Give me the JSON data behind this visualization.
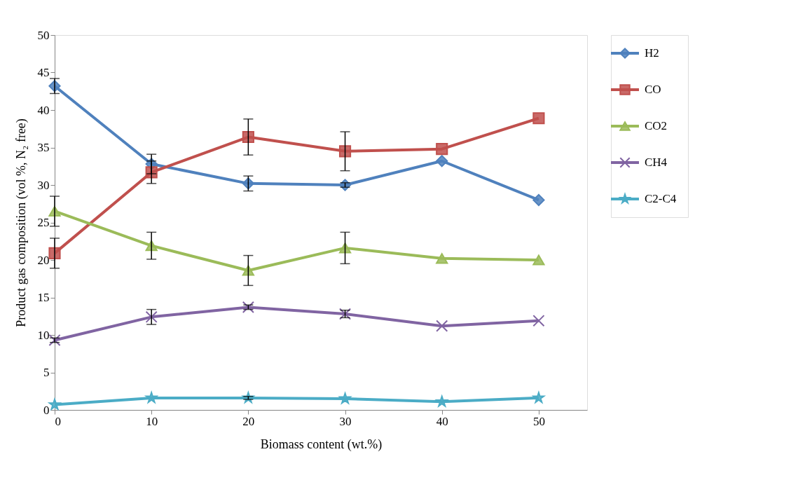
{
  "chart_data": {
    "type": "line",
    "xlabel": "Biomass content (wt.%)",
    "ylabel": "Product gas composition (vol %, N₂ free)",
    "x": [
      0,
      10,
      20,
      30,
      40,
      50
    ],
    "xlim": [
      0,
      55
    ],
    "xticks": [
      0,
      10,
      20,
      30,
      40,
      50
    ],
    "ylim": [
      0,
      50
    ],
    "yticks": [
      0,
      5,
      10,
      15,
      20,
      25,
      30,
      35,
      40,
      45,
      50
    ],
    "grid": false,
    "legend": "right",
    "line_style": "solid",
    "series": [
      {
        "name": "H2",
        "color": "#4f81bd",
        "marker": "diamond",
        "values": [
          43.2,
          32.8,
          30.2,
          30.0,
          33.2,
          28.0
        ],
        "errors": [
          1.0,
          1.3,
          1.0,
          0.3,
          null,
          null
        ]
      },
      {
        "name": "CO",
        "color": "#c0504d",
        "marker": "square",
        "values": [
          20.9,
          31.7,
          36.4,
          34.5,
          34.8,
          38.9
        ],
        "errors": [
          2.0,
          1.5,
          2.4,
          2.6,
          null,
          null
        ]
      },
      {
        "name": "CO2",
        "color": "#9bbb59",
        "marker": "triangle",
        "values": [
          26.5,
          21.9,
          18.6,
          21.6,
          20.2,
          20.0
        ],
        "errors": [
          2.0,
          1.8,
          2.0,
          2.1,
          null,
          null
        ]
      },
      {
        "name": "CH4",
        "color": "#8064a2",
        "marker": "cross",
        "values": [
          9.3,
          12.4,
          13.7,
          12.8,
          11.2,
          11.9
        ],
        "errors": [
          0.3,
          1.0,
          0.3,
          0.5,
          null,
          null
        ]
      },
      {
        "name": "C2-C4",
        "color": "#4bacc6",
        "marker": "star",
        "values": [
          0.7,
          1.6,
          1.6,
          1.5,
          1.1,
          1.6
        ],
        "errors": [
          null,
          null,
          0.2,
          null,
          null,
          null
        ]
      }
    ]
  }
}
